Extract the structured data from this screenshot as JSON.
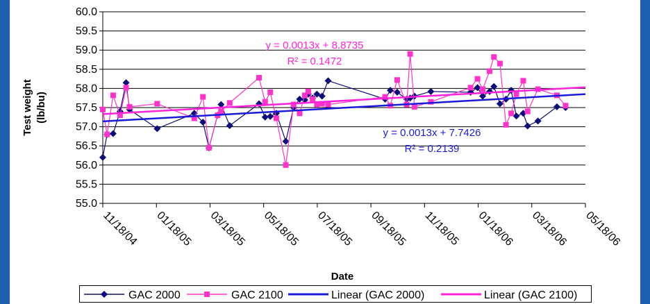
{
  "chart_data": {
    "type": "scatter",
    "title": "",
    "xlabel": "Date",
    "ylabel": [
      "Test weight",
      "(lb/bu)"
    ],
    "ylim": [
      55.0,
      60.0
    ],
    "xlim": [
      "2004-11-05",
      "2006-05-18"
    ],
    "y_ticks": [
      "55.0",
      "55.5",
      "56.0",
      "56.5",
      "57.0",
      "57.5",
      "58.0",
      "58.5",
      "59.0",
      "59.5",
      "60.0"
    ],
    "x_ticks": [
      "11/18/04",
      "01/18/05",
      "03/18/05",
      "05/18/05",
      "07/18/05",
      "09/18/05",
      "11/18/05",
      "01/18/06",
      "03/18/06",
      "05/18/06"
    ],
    "grid": "horizontal",
    "legend_position": "bottom",
    "colors": {
      "gac2000": "#0b0b7a",
      "gac2100": "#ff33cc",
      "trend2000": "#1a1adc",
      "trend2100": "#ff22dd",
      "edge": "#1f5fb0"
    },
    "series": [
      {
        "name": "GAC 2000",
        "marker": "diamond",
        "points": [
          [
            "2004-11-05",
            56.2
          ],
          [
            "2004-11-10",
            56.8
          ],
          [
            "2004-11-17",
            56.82
          ],
          [
            "2004-11-25",
            57.4
          ],
          [
            "2004-12-02",
            58.15
          ],
          [
            "2004-12-06",
            57.45
          ],
          [
            "2005-01-07",
            56.95
          ],
          [
            "2005-02-19",
            57.35
          ],
          [
            "2005-03-01",
            57.12
          ],
          [
            "2005-03-08",
            56.45
          ],
          [
            "2005-03-18",
            57.3
          ],
          [
            "2005-03-22",
            57.58
          ],
          [
            "2005-04-01",
            57.03
          ],
          [
            "2005-05-05",
            57.6
          ],
          [
            "2005-05-12",
            57.25
          ],
          [
            "2005-05-18",
            57.27
          ],
          [
            "2005-05-25",
            57.35
          ],
          [
            "2005-06-05",
            56.62
          ],
          [
            "2005-06-14",
            57.5
          ],
          [
            "2005-06-21",
            57.72
          ],
          [
            "2005-06-27",
            57.7
          ],
          [
            "2005-07-01",
            57.85
          ],
          [
            "2005-07-06",
            57.75
          ],
          [
            "2005-07-11",
            57.85
          ],
          [
            "2005-07-17",
            57.8
          ],
          [
            "2005-07-24",
            58.2
          ],
          [
            "2005-09-28",
            57.72
          ],
          [
            "2005-10-04",
            57.95
          ],
          [
            "2005-10-12",
            57.9
          ],
          [
            "2005-10-23",
            57.72
          ],
          [
            "2005-10-27",
            57.75
          ],
          [
            "2005-11-01",
            57.8
          ],
          [
            "2005-11-20",
            57.92
          ],
          [
            "2006-01-05",
            57.9
          ],
          [
            "2006-01-13",
            58.02
          ],
          [
            "2006-01-19",
            57.8
          ],
          [
            "2006-01-27",
            57.92
          ],
          [
            "2006-02-01",
            58.05
          ],
          [
            "2006-02-08",
            57.6
          ],
          [
            "2006-02-15",
            57.72
          ],
          [
            "2006-02-21",
            57.95
          ],
          [
            "2006-02-27",
            57.28
          ],
          [
            "2006-03-07",
            57.35
          ],
          [
            "2006-03-12",
            57.02
          ],
          [
            "2006-03-24",
            57.15
          ],
          [
            "2006-04-15",
            57.52
          ],
          [
            "2006-04-25",
            57.5
          ]
        ]
      },
      {
        "name": "GAC 2100",
        "marker": "square",
        "points": [
          [
            "2004-11-05",
            57.45
          ],
          [
            "2004-11-10",
            56.8
          ],
          [
            "2004-11-17",
            57.82
          ],
          [
            "2004-11-25",
            57.3
          ],
          [
            "2004-12-02",
            58.02
          ],
          [
            "2004-12-06",
            57.52
          ],
          [
            "2005-01-07",
            57.6
          ],
          [
            "2005-02-19",
            57.22
          ],
          [
            "2005-03-01",
            57.78
          ],
          [
            "2005-03-08",
            56.45
          ],
          [
            "2005-03-18",
            57.3
          ],
          [
            "2005-03-22",
            57.4
          ],
          [
            "2005-04-01",
            57.62
          ],
          [
            "2005-05-05",
            58.28
          ],
          [
            "2005-05-12",
            57.65
          ],
          [
            "2005-05-18",
            57.9
          ],
          [
            "2005-05-25",
            57.22
          ],
          [
            "2005-06-05",
            56.0
          ],
          [
            "2005-06-14",
            57.58
          ],
          [
            "2005-06-21",
            57.35
          ],
          [
            "2005-06-27",
            57.82
          ],
          [
            "2005-07-01",
            57.92
          ],
          [
            "2005-07-06",
            57.72
          ],
          [
            "2005-07-11",
            57.58
          ],
          [
            "2005-07-17",
            57.6
          ],
          [
            "2005-07-24",
            57.58
          ],
          [
            "2005-09-28",
            57.78
          ],
          [
            "2005-10-04",
            57.55
          ],
          [
            "2005-10-12",
            58.22
          ],
          [
            "2005-10-23",
            57.58
          ],
          [
            "2005-10-27",
            58.9
          ],
          [
            "2005-11-01",
            57.52
          ],
          [
            "2005-11-20",
            57.65
          ],
          [
            "2006-01-05",
            58.02
          ],
          [
            "2006-01-13",
            58.25
          ],
          [
            "2006-01-19",
            57.98
          ],
          [
            "2006-01-27",
            58.45
          ],
          [
            "2006-02-01",
            58.82
          ],
          [
            "2006-02-08",
            58.65
          ],
          [
            "2006-02-15",
            57.05
          ],
          [
            "2006-02-21",
            57.35
          ],
          [
            "2006-02-27",
            57.85
          ],
          [
            "2006-03-07",
            58.2
          ],
          [
            "2006-03-12",
            57.4
          ],
          [
            "2006-03-24",
            57.98
          ],
          [
            "2006-04-15",
            57.82
          ],
          [
            "2006-04-25",
            57.55
          ]
        ]
      }
    ],
    "trendlines": [
      {
        "name": "Linear (GAC 2000)",
        "y_start": 57.14,
        "y_end": 57.85,
        "equation": "y = 0.0013x + 7.7426",
        "r2": "R² = 0.2139",
        "label_color": "#1a1adc"
      },
      {
        "name": "Linear (GAC 2100)",
        "y_start": 57.33,
        "y_end": 58.03,
        "equation": "y = 0.0013x + 8.8735",
        "r2": "R² = 0.1472",
        "label_color": "#ff22dd"
      }
    ]
  }
}
